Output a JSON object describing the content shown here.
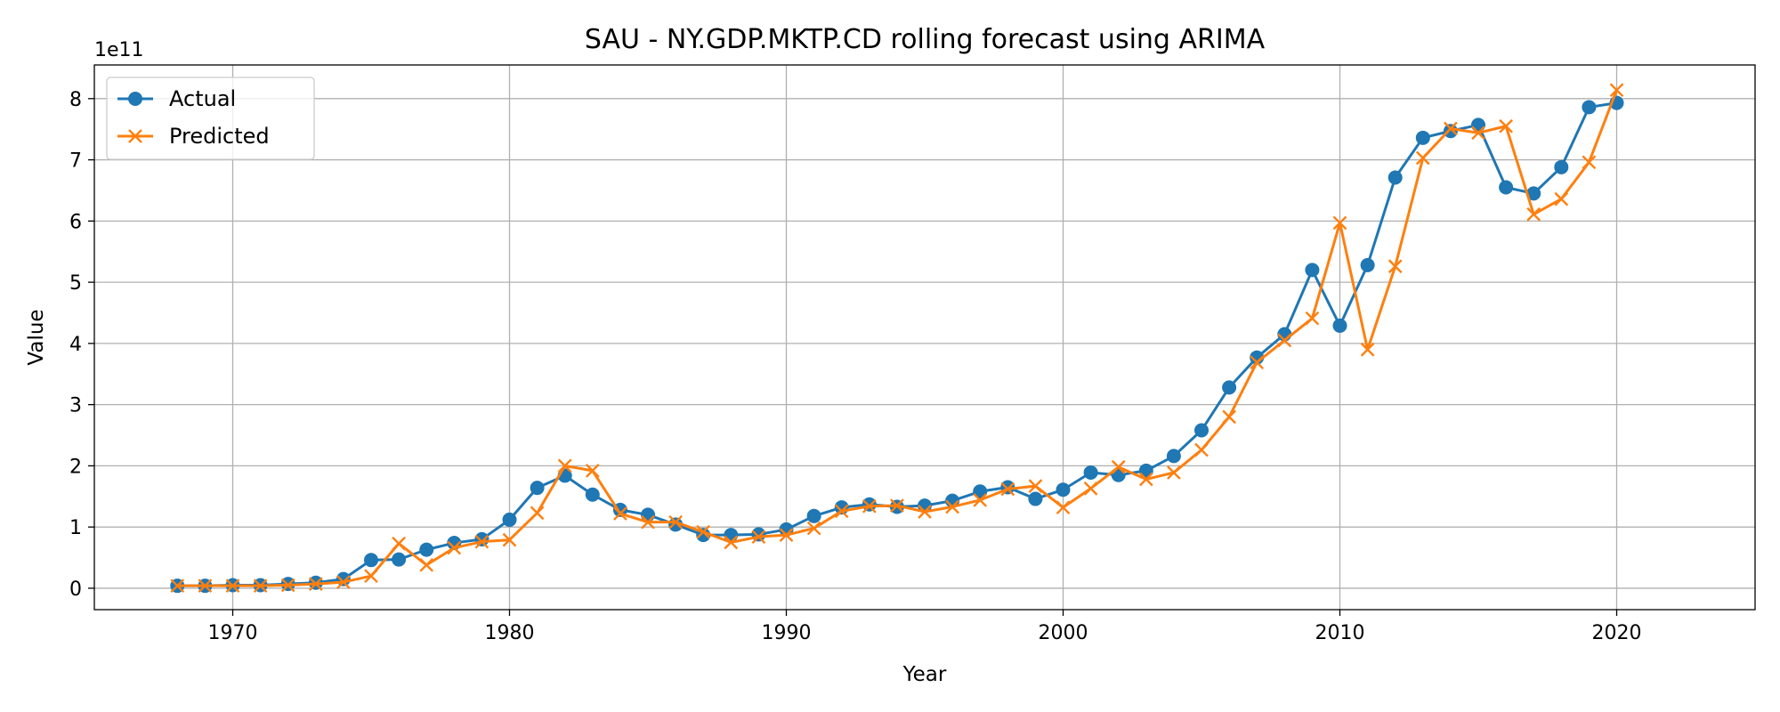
{
  "chart_data": {
    "type": "line",
    "title": "SAU - NY.GDP.MKTP.CD rolling forecast using ARIMA",
    "xlabel": "Year",
    "ylabel": "Value",
    "y_offset_label": "1e11",
    "y_scale_multiplier": 100000000000.0,
    "xlim": [
      1965,
      2025
    ],
    "ylim": [
      -0.35,
      8.55
    ],
    "x_ticks": [
      1970,
      1980,
      1990,
      2000,
      2010,
      2020
    ],
    "x_tick_labels": [
      "1970",
      "1980",
      "1990",
      "2000",
      "2010",
      "2020"
    ],
    "y_ticks": [
      0,
      1,
      2,
      3,
      4,
      5,
      6,
      7,
      8
    ],
    "y_tick_labels": [
      "0",
      "1",
      "2",
      "3",
      "4",
      "5",
      "6",
      "7",
      "8"
    ],
    "grid": true,
    "legend_position": "top-left",
    "x": [
      1968,
      1969,
      1970,
      1971,
      1972,
      1973,
      1974,
      1975,
      1976,
      1977,
      1978,
      1979,
      1980,
      1981,
      1982,
      1983,
      1984,
      1985,
      1986,
      1987,
      1988,
      1989,
      1990,
      1991,
      1992,
      1993,
      1994,
      1995,
      1996,
      1997,
      1998,
      1999,
      2000,
      2001,
      2002,
      2003,
      2004,
      2005,
      2006,
      2007,
      2008,
      2009,
      2010,
      2011,
      2012,
      2013,
      2014,
      2015,
      2016,
      2017,
      2018,
      2019,
      2020
    ],
    "series": [
      {
        "name": "Actual",
        "color": "#1f77b4",
        "marker": "circle",
        "values": [
          0.04,
          0.04,
          0.05,
          0.05,
          0.07,
          0.09,
          0.15,
          0.46,
          0.47,
          0.63,
          0.74,
          0.8,
          1.12,
          1.64,
          1.84,
          1.53,
          1.28,
          1.2,
          1.04,
          0.87,
          0.87,
          0.88,
          0.96,
          1.18,
          1.32,
          1.37,
          1.33,
          1.35,
          1.43,
          1.58,
          1.65,
          1.46,
          1.61,
          1.89,
          1.85,
          1.92,
          2.16,
          2.58,
          3.28,
          3.77,
          4.15,
          5.2,
          4.29,
          5.28,
          6.71,
          7.36,
          7.47,
          7.57,
          6.55,
          6.45,
          6.88,
          7.86,
          7.93
        ]
      },
      {
        "name": "Predicted",
        "color": "#ff7f0e",
        "marker": "x",
        "values": [
          0.04,
          0.04,
          0.04,
          0.04,
          0.05,
          0.07,
          0.1,
          0.2,
          0.73,
          0.38,
          0.66,
          0.76,
          0.79,
          1.23,
          2.0,
          1.92,
          1.22,
          1.08,
          1.08,
          0.92,
          0.75,
          0.84,
          0.87,
          0.98,
          1.26,
          1.34,
          1.35,
          1.25,
          1.33,
          1.44,
          1.62,
          1.67,
          1.32,
          1.63,
          1.98,
          1.78,
          1.89,
          2.26,
          2.8,
          3.69,
          4.05,
          4.41,
          5.97,
          3.9,
          5.26,
          7.03,
          7.51,
          7.44,
          7.55,
          6.11,
          6.36,
          6.96,
          8.14
        ]
      }
    ]
  }
}
